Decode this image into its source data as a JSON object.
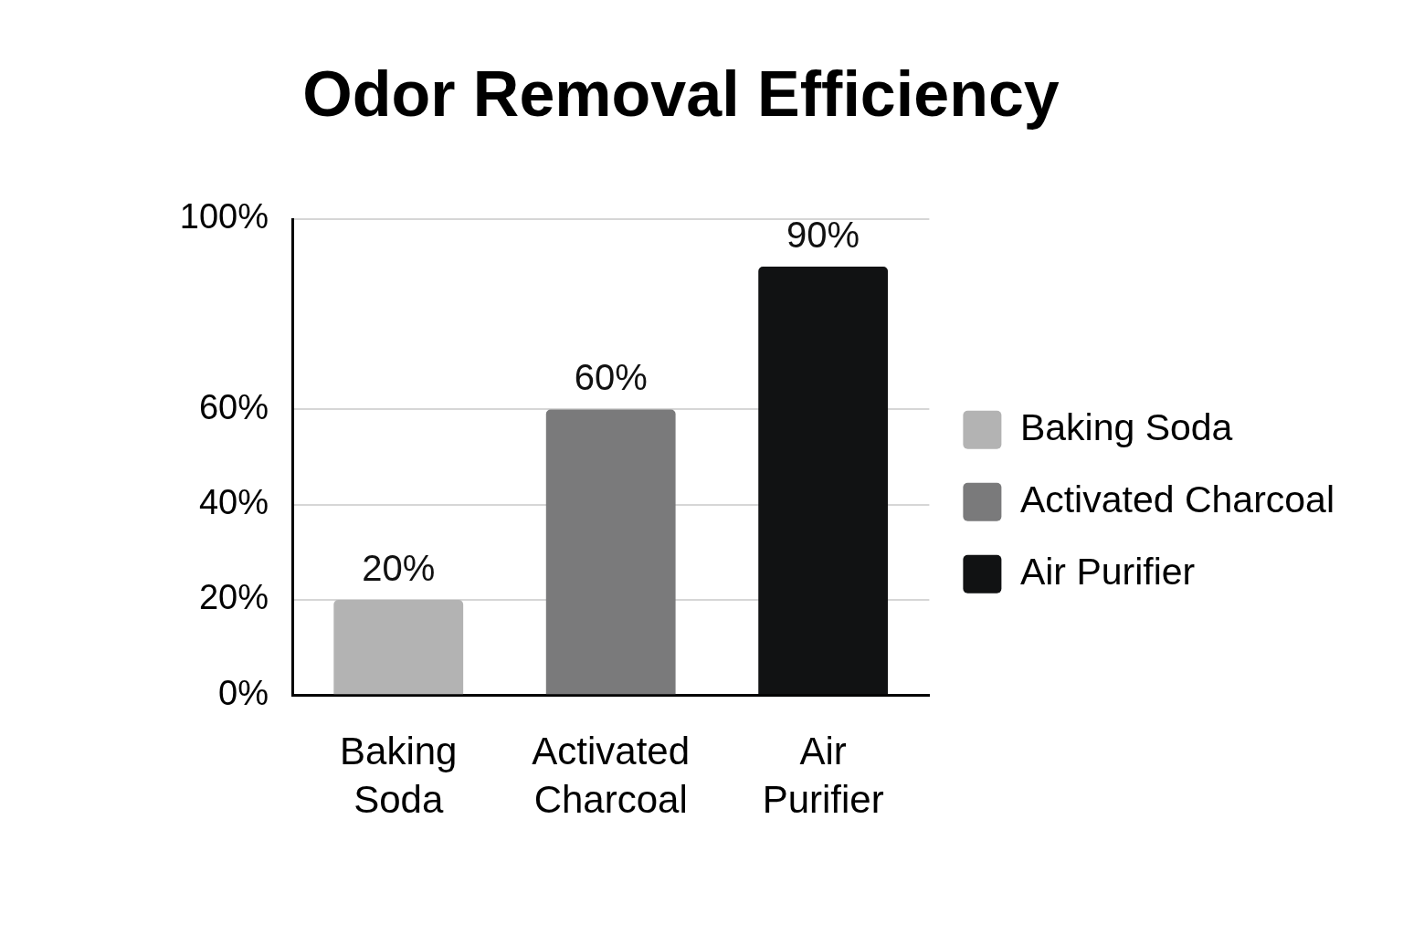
{
  "chart_data": {
    "type": "bar",
    "title": "Odor Removal Efficiency",
    "categories": [
      "Baking Soda",
      "Activated Charcoal",
      "Air Purifier"
    ],
    "series": [
      {
        "name": "Baking Soda",
        "color": "#b3b3b3",
        "values": [
          20,
          null,
          null
        ],
        "value_labels": [
          "20%",
          null,
          null
        ]
      },
      {
        "name": "Activated Charcoal",
        "color": "#7a7a7b",
        "values": [
          null,
          60,
          null
        ],
        "value_labels": [
          null,
          "60%",
          null
        ]
      },
      {
        "name": "Air Purifier",
        "color": "#111213",
        "values": [
          null,
          null,
          90
        ],
        "value_labels": [
          null,
          null,
          "90%"
        ]
      }
    ],
    "ylim": [
      0,
      100
    ],
    "yticks": [
      {
        "value": 0,
        "label": "0%"
      },
      {
        "value": 20,
        "label": "20%"
      },
      {
        "value": 40,
        "label": "40%"
      },
      {
        "value": 60,
        "label": "60%"
      },
      {
        "value": 100,
        "label": "100%"
      }
    ],
    "grid": "y",
    "legend": "right"
  }
}
